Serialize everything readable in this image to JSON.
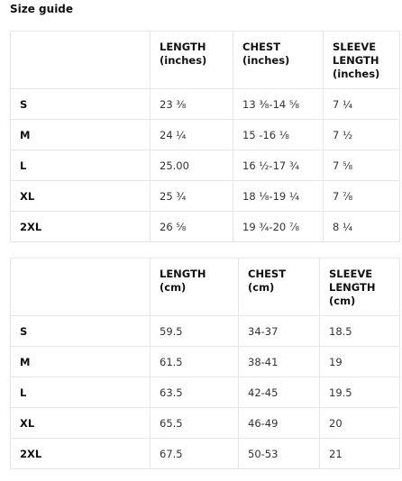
{
  "title": "Size guide",
  "tables": [
    {
      "headers": [
        "",
        "LENGTH\n(inches)",
        "CHEST\n(inches)",
        "SLEEVE\nLENGTH\n(inches)"
      ],
      "rows": [
        {
          "size": "S",
          "length": "23 ⅜",
          "chest": "13 ⅜-14 ⅝",
          "sleeve": "7 ¼"
        },
        {
          "size": "M",
          "length": "24 ¼",
          "chest": "15 -16 ⅛",
          "sleeve": "7 ½"
        },
        {
          "size": "L",
          "length": "25.00",
          "chest": "16 ½-17 ¾",
          "sleeve": "7 ⅝"
        },
        {
          "size": "XL",
          "length": "25 ¾",
          "chest": "18 ⅛-19 ¼",
          "sleeve": "7 ⅞"
        },
        {
          "size": "2XL",
          "length": "26 ⅝",
          "chest": "19 ¾-20 ⅞",
          "sleeve": "8 ¼"
        }
      ]
    },
    {
      "headers": [
        "",
        "LENGTH\n(cm)",
        "CHEST\n(cm)",
        "SLEEVE\nLENGTH\n(cm)"
      ],
      "rows": [
        {
          "size": "S",
          "length": "59.5",
          "chest": "34-37",
          "sleeve": "18.5"
        },
        {
          "size": "M",
          "length": "61.5",
          "chest": "38-41",
          "sleeve": "19"
        },
        {
          "size": "L",
          "length": "63.5",
          "chest": "42-45",
          "sleeve": "19.5"
        },
        {
          "size": "XL",
          "length": "65.5",
          "chest": "46-49",
          "sleeve": "20"
        },
        {
          "size": "2XL",
          "length": "67.5",
          "chest": "50-53",
          "sleeve": "21"
        }
      ]
    }
  ]
}
